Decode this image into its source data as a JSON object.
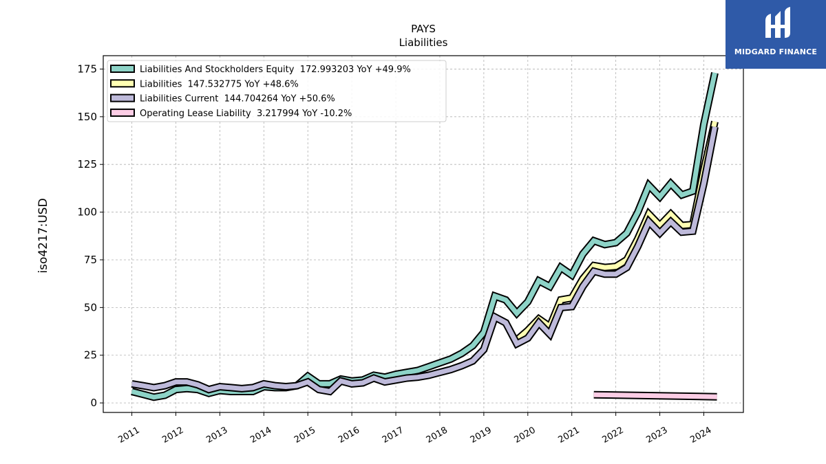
{
  "chart_data": {
    "type": "line",
    "title": "PAYS",
    "subtitle": "Liabilities",
    "ylabel": "iso4217:USD",
    "xlabel": "",
    "ylim": [
      -5,
      182
    ],
    "xlim": [
      2010.35,
      2024.9
    ],
    "yticks": [
      "0",
      "25",
      "50",
      "75",
      "100",
      "125",
      "150",
      "175"
    ],
    "xticks": [
      "2011",
      "2012",
      "2013",
      "2014",
      "2015",
      "2016",
      "2017",
      "2018",
      "2019",
      "2020",
      "2021",
      "2022",
      "2023",
      "2024"
    ],
    "grid": true,
    "legend_position": "top-left",
    "series": [
      {
        "name": "Liabilities And Stockholders Equity  172.993203 YoY +49.9%",
        "color": "#8dd3c7",
        "x": [
          2011.0,
          2011.25,
          2011.5,
          2011.75,
          2012.0,
          2012.25,
          2012.5,
          2012.75,
          2013.0,
          2013.25,
          2013.5,
          2013.75,
          2014.0,
          2014.25,
          2014.5,
          2014.75,
          2015.0,
          2015.25,
          2015.5,
          2015.75,
          2016.0,
          2016.25,
          2016.5,
          2016.75,
          2017.0,
          2017.25,
          2017.5,
          2017.75,
          2018.0,
          2018.25,
          2018.5,
          2018.75,
          2019.0,
          2019.25,
          2019.5,
          2019.75,
          2020.0,
          2020.25,
          2020.5,
          2020.75,
          2021.0,
          2021.25,
          2021.5,
          2021.75,
          2022.0,
          2022.25,
          2022.5,
          2022.75,
          2023.0,
          2023.25,
          2023.5,
          2023.75,
          2024.0,
          2024.25
        ],
        "y": [
          6,
          4.5,
          3,
          4,
          7,
          7.5,
          7,
          5,
          6.5,
          6,
          6,
          6,
          8.5,
          8,
          8,
          9,
          14,
          10,
          10,
          12.5,
          11.5,
          12,
          14.5,
          13.5,
          15,
          16,
          17,
          19,
          21,
          23,
          26,
          30,
          37,
          56,
          54,
          47,
          53,
          64,
          61,
          71,
          67,
          78,
          85,
          83,
          84,
          89,
          100,
          114,
          108,
          115,
          109,
          111,
          146,
          173
        ]
      },
      {
        "name": "Liabilities  147.532775 YoY +48.6%",
        "color": "#ffffb3",
        "x": [
          2019.75,
          2020.0,
          2020.25,
          2020.5,
          2020.75,
          2021.0,
          2021.25,
          2021.5,
          2021.75,
          2022.0,
          2022.25,
          2022.5,
          2022.75,
          2023.0,
          2023.25,
          2023.5,
          2023.75,
          2024.0,
          2024.25
        ],
        "y": [
          33,
          38,
          44,
          40,
          54,
          55,
          65,
          72,
          71,
          71.5,
          75,
          86,
          99,
          93,
          99,
          93,
          93.5,
          122,
          147.5
        ]
      },
      {
        "name": "Liabilities Current  144.704264 YoY +50.6%",
        "color": "#bebada",
        "x": [
          2011.0,
          2011.25,
          2011.5,
          2011.75,
          2012.0,
          2012.25,
          2012.5,
          2012.75,
          2013.0,
          2013.25,
          2013.5,
          2013.75,
          2014.0,
          2014.25,
          2014.5,
          2014.75,
          2015.0,
          2015.25,
          2015.5,
          2015.75,
          2016.0,
          2016.25,
          2016.5,
          2016.75,
          2017.0,
          2017.25,
          2017.5,
          2017.75,
          2018.0,
          2018.25,
          2018.5,
          2018.75,
          2019.0,
          2019.25,
          2019.5,
          2019.75,
          2020.0,
          2020.25,
          2020.5,
          2020.75,
          2021.0,
          2021.25,
          2021.5,
          2021.75,
          2022.0,
          2022.25,
          2022.5,
          2022.75,
          2023.0,
          2023.25,
          2023.5,
          2023.75,
          2024.0,
          2024.25
        ],
        "y": [
          10,
          9,
          8,
          9,
          11,
          11,
          9.5,
          7,
          8.5,
          8,
          7.5,
          8,
          10,
          9,
          8.5,
          9,
          11,
          7,
          6,
          11.5,
          10,
          10.5,
          13,
          11,
          12,
          13,
          13.5,
          14.5,
          16,
          17.5,
          19.5,
          22,
          28,
          45,
          42,
          31,
          34,
          42,
          36,
          50,
          50.5,
          61,
          69,
          67.5,
          67.5,
          71,
          82,
          95,
          89,
          95,
          89.5,
          90,
          115,
          144.7
        ]
      },
      {
        "name": "Operating Lease Liability  3.217994 YoY -10.2%",
        "color": "#fccde5",
        "x": [
          2021.5,
          2024.3
        ],
        "y": [
          4.3,
          3.2
        ]
      }
    ]
  },
  "logo": {
    "text": "MIDGARD FINANCE",
    "bg": "#2f5aa8"
  }
}
